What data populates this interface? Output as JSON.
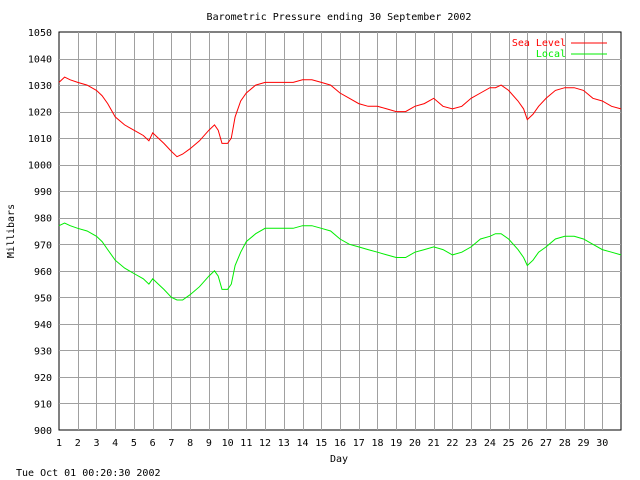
{
  "chart_data": {
    "type": "line",
    "title": "Barometric Pressure ending 30 September 2002",
    "xlabel": "Day",
    "ylabel": "Millibars",
    "footer": "Tue Oct 01 00:20:30 2002",
    "xlim": [
      1,
      31
    ],
    "ylim": [
      900,
      1050
    ],
    "x_ticks": [
      1,
      2,
      3,
      4,
      5,
      6,
      7,
      8,
      9,
      10,
      11,
      12,
      13,
      14,
      15,
      16,
      17,
      18,
      19,
      20,
      21,
      22,
      23,
      24,
      25,
      26,
      27,
      28,
      29,
      30
    ],
    "y_ticks": [
      900,
      910,
      920,
      930,
      940,
      950,
      960,
      970,
      980,
      990,
      1000,
      1010,
      1020,
      1030,
      1040,
      1050
    ],
    "grid": true,
    "legend_position": "top-right",
    "series": [
      {
        "name": "Sea Level",
        "color": "#ff0000",
        "x": [
          1,
          1.3,
          1.6,
          2,
          2.5,
          3,
          3.3,
          3.6,
          4,
          4.5,
          5,
          5.5,
          5.8,
          6,
          6.3,
          6.6,
          7,
          7.3,
          7.6,
          8,
          8.5,
          9,
          9.3,
          9.5,
          9.7,
          9.85,
          10,
          10.2,
          10.4,
          10.7,
          11,
          11.5,
          12,
          12.5,
          13,
          13.5,
          14,
          14.5,
          15,
          15.5,
          16,
          16.5,
          17,
          17.5,
          18,
          18.5,
          19,
          19.5,
          20,
          20.5,
          21,
          21.5,
          22,
          22.5,
          23,
          23.5,
          24,
          24.3,
          24.6,
          25,
          25.5,
          25.8,
          26,
          26.3,
          26.6,
          27,
          27.5,
          28,
          28.5,
          29,
          29.5,
          30,
          30.5,
          31
        ],
        "values": [
          1031,
          1033,
          1032,
          1031,
          1030,
          1028,
          1026,
          1023,
          1018,
          1015,
          1013,
          1011,
          1009,
          1012,
          1010,
          1008,
          1005,
          1003,
          1004,
          1006,
          1009,
          1013,
          1015,
          1013,
          1008,
          1008,
          1008,
          1010,
          1018,
          1024,
          1027,
          1030,
          1031,
          1031,
          1031,
          1031,
          1032,
          1032,
          1031,
          1030,
          1027,
          1025,
          1023,
          1022,
          1022,
          1021,
          1020,
          1020,
          1022,
          1023,
          1025,
          1022,
          1021,
          1022,
          1025,
          1027,
          1029,
          1029,
          1030,
          1028,
          1024,
          1021,
          1017,
          1019,
          1022,
          1025,
          1028,
          1029,
          1029,
          1028,
          1025,
          1024,
          1022,
          1021
        ]
      },
      {
        "name": "Local",
        "color": "#00ee00",
        "x": [
          1,
          1.3,
          1.6,
          2,
          2.5,
          3,
          3.3,
          3.6,
          4,
          4.5,
          5,
          5.5,
          5.8,
          6,
          6.3,
          6.6,
          7,
          7.3,
          7.6,
          8,
          8.5,
          9,
          9.3,
          9.5,
          9.7,
          9.85,
          10,
          10.2,
          10.4,
          10.7,
          11,
          11.5,
          12,
          12.5,
          13,
          13.5,
          14,
          14.5,
          15,
          15.5,
          16,
          16.5,
          17,
          17.5,
          18,
          18.5,
          19,
          19.5,
          20,
          20.5,
          21,
          21.5,
          22,
          22.5,
          23,
          23.5,
          24,
          24.3,
          24.6,
          25,
          25.5,
          25.8,
          26,
          26.3,
          26.6,
          27,
          27.5,
          28,
          28.5,
          29,
          29.5,
          30,
          30.5,
          31
        ],
        "values": [
          977,
          978,
          977,
          976,
          975,
          973,
          971,
          968,
          964,
          961,
          959,
          957,
          955,
          957,
          955,
          953,
          950,
          949,
          949,
          951,
          954,
          958,
          960,
          958,
          953,
          953,
          953,
          955,
          962,
          967,
          971,
          974,
          976,
          976,
          976,
          976,
          977,
          977,
          976,
          975,
          972,
          970,
          969,
          968,
          967,
          966,
          965,
          965,
          967,
          968,
          969,
          968,
          966,
          967,
          969,
          972,
          973,
          974,
          974,
          972,
          968,
          965,
          962,
          964,
          967,
          969,
          972,
          973,
          973,
          972,
          970,
          968,
          967,
          966
        ]
      }
    ]
  }
}
